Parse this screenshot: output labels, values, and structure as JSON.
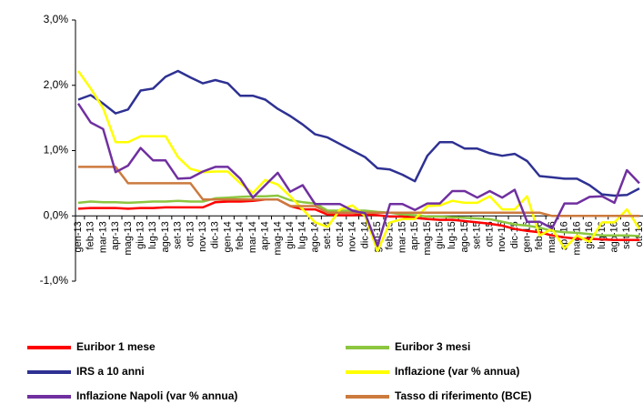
{
  "chart_data": {
    "type": "line",
    "categories": [
      "gen-13",
      "feb-13",
      "mar-13",
      "apr-13",
      "mag-13",
      "giu-13",
      "lug-13",
      "ago-13",
      "set-13",
      "ott-13",
      "nov-13",
      "dic-13",
      "gen-14",
      "feb-14",
      "mar-14",
      "apr-14",
      "mag-14",
      "giu-14",
      "lug-14",
      "ago-14",
      "set-14",
      "ott-14",
      "nov-14",
      "dic-14",
      "gen-15",
      "feb-15",
      "mar-15",
      "apr-15",
      "mag-15",
      "giu-15",
      "lug-15",
      "ago-15",
      "set-15",
      "ott-15",
      "nov-15",
      "dic-15",
      "gen-16",
      "feb-16",
      "mar-16",
      "apr-16",
      "mag-16",
      "giu-16",
      "lug-16",
      "ago-16",
      "set-16",
      "ott-16"
    ],
    "series": [
      {
        "name": "Euribor 1 mese",
        "color": "#ff0000",
        "values": [
          0.11,
          0.12,
          0.12,
          0.12,
          0.11,
          0.12,
          0.12,
          0.13,
          0.13,
          0.13,
          0.13,
          0.21,
          0.22,
          0.22,
          0.23,
          0.25,
          0.25,
          0.15,
          0.1,
          0.1,
          0.02,
          0.01,
          0.01,
          0.02,
          0.01,
          -0.01,
          -0.01,
          -0.03,
          -0.05,
          -0.06,
          -0.06,
          -0.08,
          -0.1,
          -0.12,
          -0.15,
          -0.2,
          -0.23,
          -0.25,
          -0.3,
          -0.33,
          -0.35,
          -0.35,
          -0.36,
          -0.37,
          -0.37,
          -0.37
        ]
      },
      {
        "name": "Euribor 3 mesi",
        "color": "#8dc63f",
        "values": [
          0.2,
          0.22,
          0.21,
          0.21,
          0.2,
          0.21,
          0.22,
          0.22,
          0.23,
          0.22,
          0.22,
          0.27,
          0.28,
          0.29,
          0.3,
          0.3,
          0.31,
          0.24,
          0.21,
          0.19,
          0.08,
          0.08,
          0.08,
          0.08,
          0.06,
          0.05,
          0.02,
          0.01,
          -0.01,
          -0.01,
          -0.02,
          -0.03,
          -0.04,
          -0.05,
          -0.09,
          -0.13,
          -0.15,
          -0.18,
          -0.23,
          -0.25,
          -0.26,
          -0.28,
          -0.3,
          -0.3,
          -0.3,
          -0.31
        ]
      },
      {
        "name": "IRS a 10 anni",
        "color": "#2e3192",
        "values": [
          1.78,
          1.85,
          1.72,
          1.57,
          1.63,
          1.92,
          1.95,
          2.13,
          2.22,
          2.12,
          2.03,
          2.08,
          2.03,
          1.84,
          1.84,
          1.78,
          1.64,
          1.53,
          1.4,
          1.25,
          1.2,
          1.1,
          1.0,
          0.9,
          0.73,
          0.71,
          0.63,
          0.53,
          0.92,
          1.13,
          1.13,
          1.03,
          1.03,
          0.96,
          0.92,
          0.95,
          0.84,
          0.61,
          0.59,
          0.57,
          0.57,
          0.47,
          0.33,
          0.31,
          0.32,
          0.42
        ]
      },
      {
        "name": "Inflazione (var % annua)",
        "color": "#ffff00",
        "values": [
          2.22,
          1.95,
          1.65,
          1.13,
          1.13,
          1.22,
          1.22,
          1.22,
          0.9,
          0.72,
          0.67,
          0.68,
          0.68,
          0.5,
          0.35,
          0.55,
          0.48,
          0.3,
          0.1,
          -0.1,
          -0.17,
          0.1,
          0.16,
          0.0,
          -0.54,
          -0.1,
          -0.05,
          -0.05,
          0.15,
          0.16,
          0.23,
          0.2,
          0.2,
          0.3,
          0.1,
          0.1,
          0.3,
          -0.3,
          -0.2,
          -0.5,
          -0.3,
          -0.4,
          -0.1,
          -0.1,
          0.1,
          -0.2
        ]
      },
      {
        "name": "Inflazione Napoli (var % annua)",
        "color": "#7030a0",
        "values": [
          1.72,
          1.43,
          1.33,
          0.67,
          0.77,
          1.04,
          0.85,
          0.85,
          0.57,
          0.58,
          0.68,
          0.75,
          0.75,
          0.57,
          0.28,
          0.47,
          0.66,
          0.37,
          0.47,
          0.18,
          0.18,
          0.18,
          0.08,
          0.04,
          -0.46,
          0.18,
          0.18,
          0.09,
          0.19,
          0.19,
          0.38,
          0.38,
          0.28,
          0.38,
          0.28,
          0.4,
          -0.09,
          -0.09,
          -0.19,
          0.19,
          0.19,
          0.29,
          0.3,
          0.2,
          0.7,
          0.5
        ]
      },
      {
        "name": "Tasso di riferimento (BCE)",
        "color": "#cc7a3e",
        "values": [
          0.75,
          0.75,
          0.75,
          0.75,
          0.5,
          0.5,
          0.5,
          0.5,
          0.5,
          0.5,
          0.25,
          0.25,
          0.25,
          0.25,
          0.25,
          0.25,
          0.25,
          0.15,
          0.15,
          0.15,
          0.05,
          0.05,
          0.05,
          0.05,
          0.05,
          0.05,
          0.05,
          0.05,
          0.05,
          0.05,
          0.05,
          0.05,
          0.05,
          0.05,
          0.05,
          0.05,
          0.05,
          0.05,
          0.0,
          0.0,
          0.0,
          0.0,
          0.0,
          0.0,
          0.0,
          0.0
        ]
      }
    ],
    "ylim": [
      -1,
      3
    ],
    "yticks": [
      {
        "value": -1,
        "label": "-1,0%"
      },
      {
        "value": 0,
        "label": "0,0%"
      },
      {
        "value": 1,
        "label": "1,0%"
      },
      {
        "value": 2,
        "label": "2,0%"
      },
      {
        "value": 3,
        "label": "3,0%"
      }
    ],
    "grid": false
  }
}
